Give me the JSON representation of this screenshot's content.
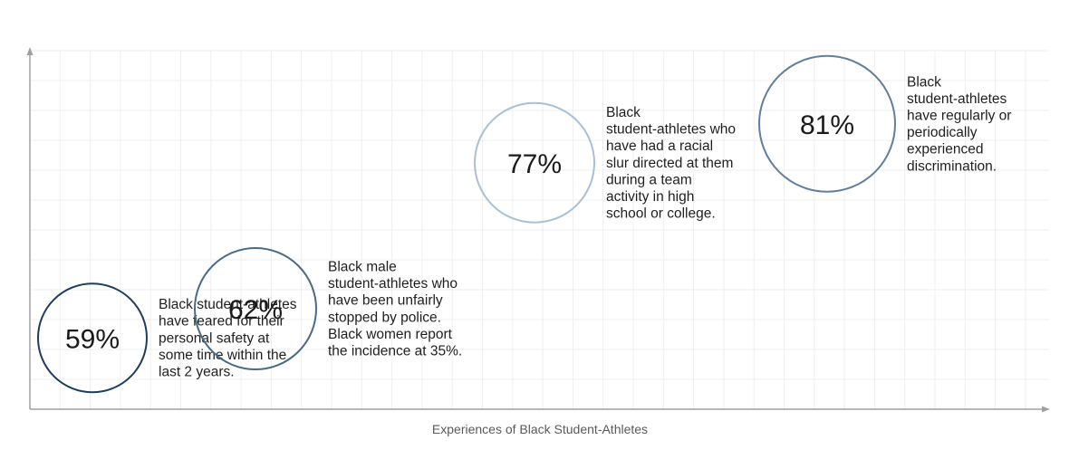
{
  "chart_data": {
    "type": "scatter",
    "title": "",
    "xlabel": "Experiences of Black Student-Athletes",
    "ylabel": "",
    "grid": true,
    "ylim": [
      50,
      90
    ],
    "points": [
      {
        "value": 59,
        "label": "59%",
        "lines": [
          "Black student-athletes",
          "have feared for their",
          "personal safety at",
          "some time within the",
          "last 2 years."
        ],
        "color": "#1f3d5c"
      },
      {
        "value": 62,
        "label": "62%",
        "lines": [
          "Black male",
          "student-athletes who",
          "have been unfairly",
          "stopped by police.",
          "Black women report",
          "the incidence at 35%."
        ],
        "color": "#4a6a88"
      },
      {
        "value": 77,
        "label": "77%",
        "lines": [
          "Black",
          "student-athletes who",
          "have had a racial",
          "slur directed at them",
          "during a team",
          "activity in high",
          "school or college."
        ],
        "color": "#a8c0d6"
      },
      {
        "value": 81,
        "label": "81%",
        "lines": [
          "Black",
          "student-athletes",
          "have regularly or",
          "periodically",
          "experienced",
          "discrimination."
        ],
        "color": "#5f7f9c"
      }
    ]
  }
}
